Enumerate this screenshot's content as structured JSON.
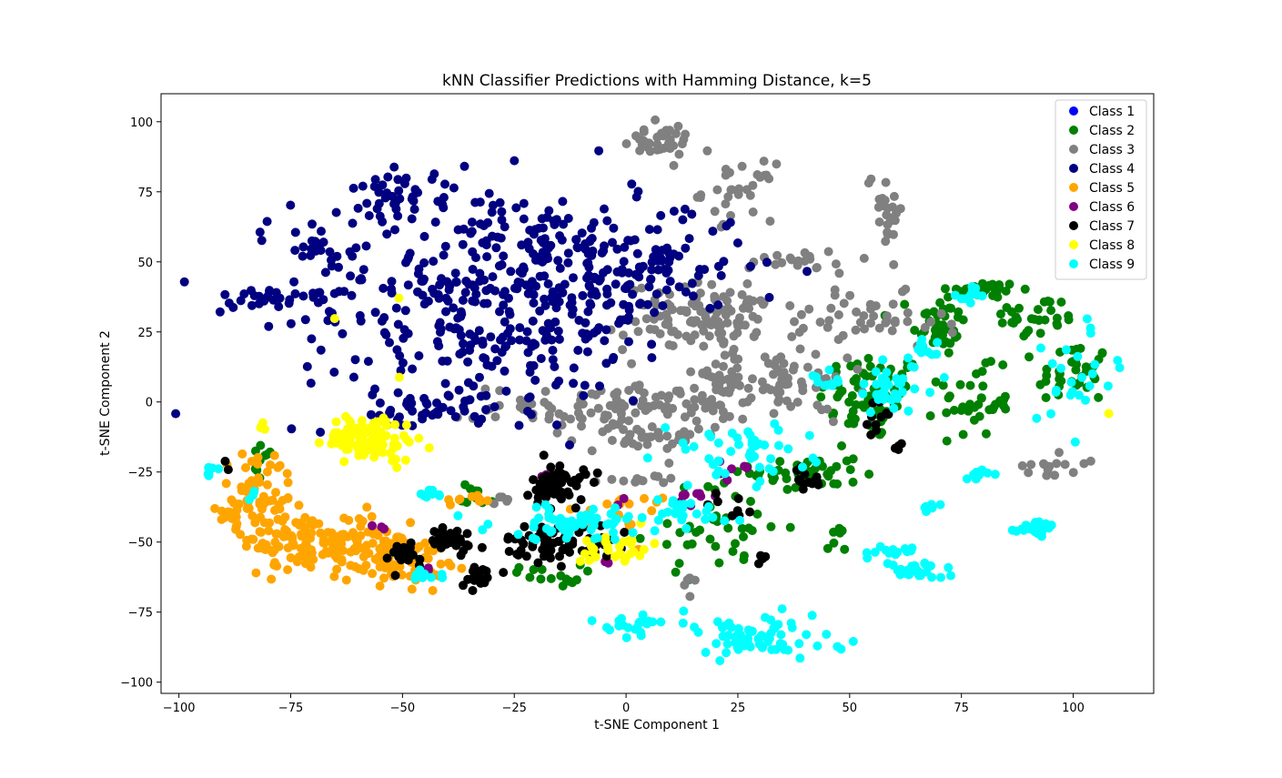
{
  "chart_data": {
    "type": "scatter",
    "title": "kNN Classifier Predictions with Hamming Distance, k=5",
    "xlabel": "t-SNE Component 1",
    "ylabel": "t-SNE Component 2",
    "xlim": [
      -104,
      118
    ],
    "ylim": [
      -104,
      110
    ],
    "xticks": [
      -100,
      -75,
      -50,
      -25,
      0,
      25,
      50,
      75,
      100
    ],
    "yticks": [
      -100,
      -75,
      -50,
      -25,
      0,
      25,
      50,
      75,
      100
    ],
    "xtick_labels": [
      "−100",
      "−75",
      "−50",
      "−25",
      "0",
      "25",
      "50",
      "75",
      "100"
    ],
    "ytick_labels": [
      "−100",
      "−75",
      "−50",
      "−25",
      "0",
      "25",
      "50",
      "75",
      "100"
    ],
    "grid": false,
    "legend_position": "top-right",
    "series": [
      {
        "name": "Class 1",
        "color": "#0000ff",
        "clusters": []
      },
      {
        "name": "Class 2",
        "color": "#008000",
        "clusters": [
          {
            "cx": 55,
            "cy": 2,
            "sx": 6,
            "sy": 8,
            "n": 70
          },
          {
            "cx": 70,
            "cy": 28,
            "sx": 3,
            "sy": 6,
            "n": 40
          },
          {
            "cx": 80,
            "cy": 40,
            "sx": 4,
            "sy": 1.5,
            "n": 40
          },
          {
            "cx": 92,
            "cy": 30,
            "sx": 5,
            "sy": 4,
            "n": 30
          },
          {
            "cx": 100,
            "cy": 10,
            "sx": 4,
            "sy": 6,
            "n": 35
          },
          {
            "cx": 78,
            "cy": 0,
            "sx": 4,
            "sy": 6,
            "n": 35
          },
          {
            "cx": 40,
            "cy": -25,
            "sx": 6,
            "sy": 4,
            "n": 45
          },
          {
            "cx": 20,
            "cy": -45,
            "sx": 8,
            "sy": 8,
            "n": 40
          },
          {
            "cx": -33,
            "cy": -33,
            "sx": 2,
            "sy": 2,
            "n": 10
          },
          {
            "cx": -18,
            "cy": -62,
            "sx": 4,
            "sy": 2,
            "n": 15
          },
          {
            "cx": -82,
            "cy": -22,
            "sx": 2,
            "sy": 5,
            "n": 10
          },
          {
            "cx": 47,
            "cy": -50,
            "sx": 1,
            "sy": 3,
            "n": 8
          }
        ]
      },
      {
        "name": "Class 3",
        "color": "#808080",
        "clusters": [
          {
            "cx": 7,
            "cy": 93,
            "sx": 4,
            "sy": 3,
            "n": 40
          },
          {
            "cx": 25,
            "cy": 75,
            "sx": 4,
            "sy": 5,
            "n": 30
          },
          {
            "cx": 20,
            "cy": 30,
            "sx": 10,
            "sy": 6,
            "n": 120
          },
          {
            "cx": 0,
            "cy": -2,
            "sx": 15,
            "sy": 4,
            "n": 120
          },
          {
            "cx": 30,
            "cy": 8,
            "sx": 12,
            "sy": 5,
            "n": 80
          },
          {
            "cx": 55,
            "cy": 28,
            "sx": 8,
            "sy": 5,
            "n": 40
          },
          {
            "cx": 5,
            "cy": -13,
            "sx": 8,
            "sy": 2,
            "n": 30
          },
          {
            "cx": 58,
            "cy": 70,
            "sx": 2,
            "sy": 8,
            "n": 25
          },
          {
            "cx": 40,
            "cy": 50,
            "sx": 6,
            "sy": 2,
            "n": 20
          },
          {
            "cx": 3,
            "cy": -27,
            "sx": 4,
            "sy": 1.5,
            "n": 12
          },
          {
            "cx": 95,
            "cy": -22,
            "sx": 4,
            "sy": 3,
            "n": 15
          },
          {
            "cx": 15,
            "cy": -65,
            "sx": 1,
            "sy": 2,
            "n": 5
          },
          {
            "cx": -28,
            "cy": -35,
            "sx": 2,
            "sy": 1,
            "n": 5
          }
        ]
      },
      {
        "name": "Class 4",
        "color": "#000080",
        "clusters": [
          {
            "cx": -30,
            "cy": 38,
            "sx": 22,
            "sy": 20,
            "n": 420
          },
          {
            "cx": 0,
            "cy": 50,
            "sx": 14,
            "sy": 10,
            "n": 120
          },
          {
            "cx": -80,
            "cy": 38,
            "sx": 4,
            "sy": 3,
            "n": 20
          },
          {
            "cx": -70,
            "cy": 53,
            "sx": 3,
            "sy": 3,
            "n": 15
          },
          {
            "cx": -50,
            "cy": 75,
            "sx": 5,
            "sy": 4,
            "n": 30
          },
          {
            "cx": -45,
            "cy": -3,
            "sx": 8,
            "sy": 4,
            "n": 40
          }
        ]
      },
      {
        "name": "Class 5",
        "color": "#ffa500",
        "clusters": [
          {
            "cx": -70,
            "cy": -50,
            "sx": 8,
            "sy": 5,
            "n": 120
          },
          {
            "cx": -52,
            "cy": -55,
            "sx": 6,
            "sy": 5,
            "n": 100
          },
          {
            "cx": -82,
            "cy": -32,
            "sx": 4,
            "sy": 8,
            "n": 60
          },
          {
            "cx": -88,
            "cy": -40,
            "sx": 2,
            "sy": 3,
            "n": 12
          },
          {
            "cx": -36,
            "cy": -36,
            "sx": 3,
            "sy": 2,
            "n": 10
          },
          {
            "cx": -5,
            "cy": -42,
            "sx": 6,
            "sy": 4,
            "n": 12
          },
          {
            "cx": 5,
            "cy": -35,
            "sx": 4,
            "sy": 2,
            "n": 8
          }
        ]
      },
      {
        "name": "Class 6",
        "color": "#800080",
        "clusters": [
          {
            "cx": 15,
            "cy": -34,
            "sx": 2,
            "sy": 1.5,
            "n": 8
          },
          {
            "cx": 25,
            "cy": -24,
            "sx": 2,
            "sy": 1.5,
            "n": 6
          },
          {
            "cx": -18,
            "cy": -27,
            "sx": 1,
            "sy": 1,
            "n": 3
          },
          {
            "cx": -45,
            "cy": -60,
            "sx": 1.5,
            "sy": 1,
            "n": 4
          },
          {
            "cx": -55,
            "cy": -44,
            "sx": 1.5,
            "sy": 1,
            "n": 3
          },
          {
            "cx": -5,
            "cy": -57,
            "sx": 1,
            "sy": 1,
            "n": 2
          },
          {
            "cx": -1,
            "cy": -35,
            "sx": 1,
            "sy": 1,
            "n": 2
          }
        ]
      },
      {
        "name": "Class 7",
        "color": "#000000",
        "clusters": [
          {
            "cx": -15,
            "cy": -30,
            "sx": 3,
            "sy": 4,
            "n": 60
          },
          {
            "cx": -15,
            "cy": -50,
            "sx": 6,
            "sy": 3,
            "n": 70
          },
          {
            "cx": -40,
            "cy": -50,
            "sx": 4,
            "sy": 3,
            "n": 30
          },
          {
            "cx": -33,
            "cy": -62,
            "sx": 2,
            "sy": 2,
            "n": 20
          },
          {
            "cx": -50,
            "cy": -55,
            "sx": 3,
            "sy": 3,
            "n": 20
          },
          {
            "cx": 40,
            "cy": -28,
            "sx": 2,
            "sy": 2,
            "n": 15
          },
          {
            "cx": 57,
            "cy": -5,
            "sx": 1.5,
            "sy": 3,
            "n": 10
          },
          {
            "cx": 31,
            "cy": -56,
            "sx": 0.5,
            "sy": 1,
            "n": 4
          },
          {
            "cx": 61,
            "cy": -16,
            "sx": 0.5,
            "sy": 1,
            "n": 4
          },
          {
            "cx": 22,
            "cy": -37,
            "sx": 3,
            "sy": 2,
            "n": 8
          },
          {
            "cx": -90,
            "cy": -22,
            "sx": 1,
            "sy": 1,
            "n": 2
          }
        ]
      },
      {
        "name": "Class 8",
        "color": "#ffff00",
        "clusters": [
          {
            "cx": -57,
            "cy": -13,
            "sx": 5,
            "sy": 4,
            "n": 110
          },
          {
            "cx": -2,
            "cy": -52,
            "sx": 4,
            "sy": 3,
            "n": 30
          },
          {
            "cx": -81,
            "cy": -9,
            "sx": 0.5,
            "sy": 1,
            "n": 3
          },
          {
            "cx": -51,
            "cy": 38,
            "sx": 0.4,
            "sy": 0.4,
            "n": 1
          },
          {
            "cx": -65,
            "cy": 30,
            "sx": 0.4,
            "sy": 0.4,
            "n": 1
          },
          {
            "cx": -51,
            "cy": 9,
            "sx": 0.4,
            "sy": 0.4,
            "n": 1
          },
          {
            "cx": 107,
            "cy": -4,
            "sx": 0.4,
            "sy": 0.4,
            "n": 1
          }
        ]
      },
      {
        "name": "Class 9",
        "color": "#00ffff",
        "clusters": [
          {
            "cx": 2,
            "cy": -79,
            "sx": 3,
            "sy": 2,
            "n": 25
          },
          {
            "cx": 28,
            "cy": -85,
            "sx": 10,
            "sy": 4,
            "n": 70
          },
          {
            "cx": 65,
            "cy": -60,
            "sx": 3,
            "sy": 1.5,
            "n": 30
          },
          {
            "cx": 92,
            "cy": -45,
            "sx": 2.5,
            "sy": 1.2,
            "n": 25
          },
          {
            "cx": 60,
            "cy": -54,
            "sx": 2,
            "sy": 1,
            "n": 15
          },
          {
            "cx": 68,
            "cy": -37,
            "sx": 1,
            "sy": 1,
            "n": 8
          },
          {
            "cx": 78,
            "cy": -26,
            "sx": 1.5,
            "sy": 1,
            "n": 10
          },
          {
            "cx": 100,
            "cy": 10,
            "sx": 6,
            "sy": 10,
            "n": 25
          },
          {
            "cx": 60,
            "cy": 5,
            "sx": 5,
            "sy": 5,
            "n": 35
          },
          {
            "cx": 25,
            "cy": -18,
            "sx": 8,
            "sy": 5,
            "n": 45
          },
          {
            "cx": -10,
            "cy": -43,
            "sx": 10,
            "sy": 3,
            "n": 60
          },
          {
            "cx": 12,
            "cy": -40,
            "sx": 6,
            "sy": 4,
            "n": 25
          },
          {
            "cx": -44,
            "cy": -33,
            "sx": 2,
            "sy": 1,
            "n": 10
          },
          {
            "cx": -93,
            "cy": -25,
            "sx": 1,
            "sy": 1,
            "n": 6
          },
          {
            "cx": -46,
            "cy": -62,
            "sx": 2,
            "sy": 1,
            "n": 10
          },
          {
            "cx": 78,
            "cy": 38,
            "sx": 2,
            "sy": 2,
            "n": 10
          },
          {
            "cx": 68,
            "cy": 20,
            "sx": 2,
            "sy": 3,
            "n": 10
          },
          {
            "cx": 45,
            "cy": 8,
            "sx": 3,
            "sy": 2,
            "n": 10
          },
          {
            "cx": -84,
            "cy": -34,
            "sx": 1,
            "sy": 1,
            "n": 3
          }
        ]
      }
    ]
  }
}
